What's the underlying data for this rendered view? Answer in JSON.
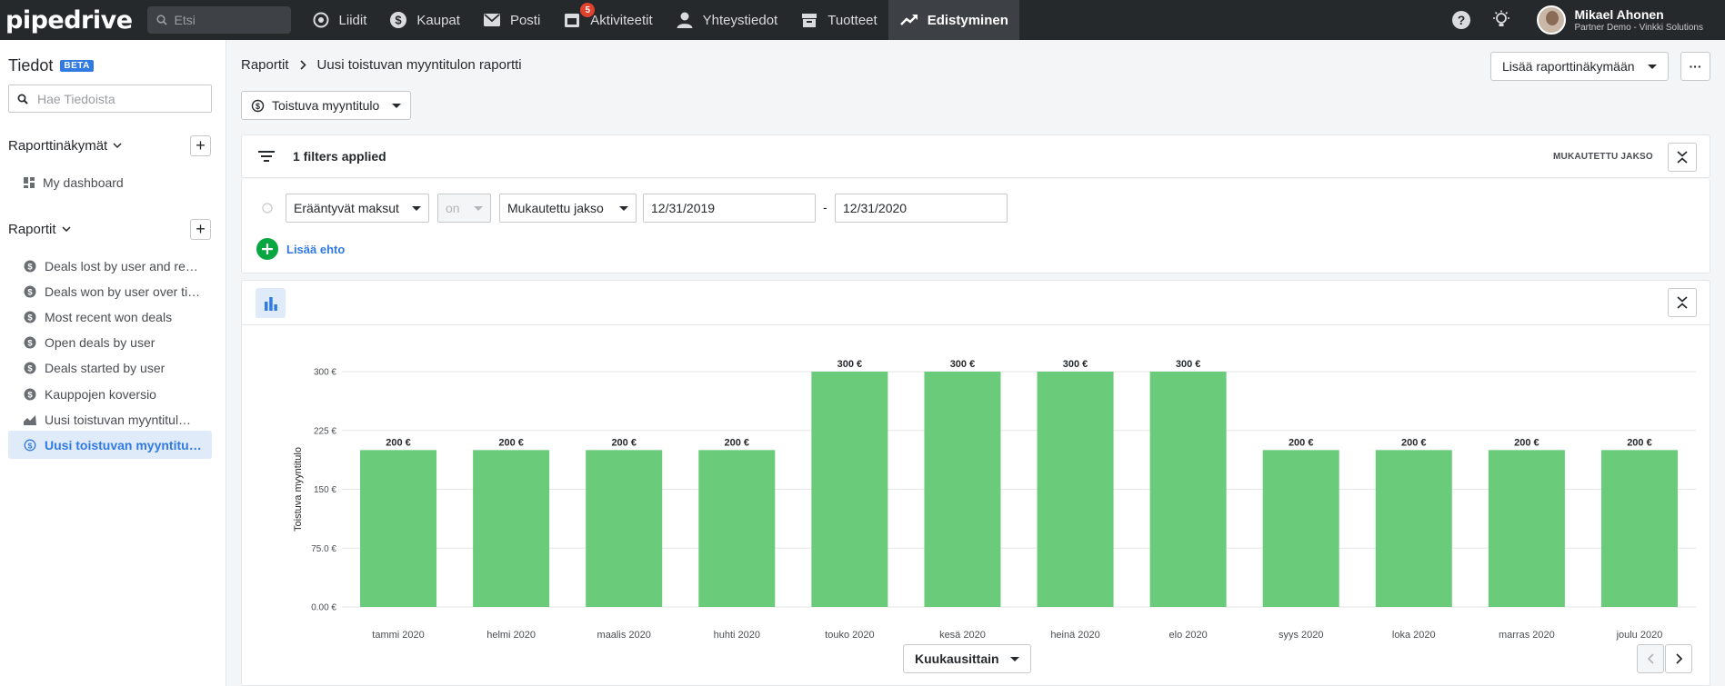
{
  "topbar": {
    "logo": "pipedrive",
    "search_placeholder": "Etsi",
    "nav": [
      {
        "label": "Liidit",
        "icon": "target-icon"
      },
      {
        "label": "Kaupat",
        "icon": "dollar-icon"
      },
      {
        "label": "Posti",
        "icon": "mail-icon"
      },
      {
        "label": "Aktiviteetit",
        "icon": "calendar-icon",
        "badge": "5"
      },
      {
        "label": "Yhteystiedot",
        "icon": "person-icon"
      },
      {
        "label": "Tuotteet",
        "icon": "box-icon"
      },
      {
        "label": "Edistyminen",
        "icon": "trend-icon",
        "active": true
      }
    ],
    "user": {
      "name": "Mikael Ahonen",
      "company": "Partner Demo - Vinkki Solutions"
    }
  },
  "sidebar": {
    "title": "Tiedot",
    "beta": "BETA",
    "search_placeholder": "Hae Tiedoista",
    "views_section": "Raporttinäkymät",
    "views": [
      {
        "label": "My dashboard",
        "icon": "dashboard-icon"
      }
    ],
    "reports_section": "Raportit",
    "reports": [
      {
        "label": "Deals lost by user and rea…",
        "icon": "dollar-icon"
      },
      {
        "label": "Deals won by user over ti…",
        "icon": "dollar-icon"
      },
      {
        "label": "Most recent won deals",
        "icon": "dollar-icon"
      },
      {
        "label": "Open deals by user",
        "icon": "dollar-icon"
      },
      {
        "label": "Deals started by user",
        "icon": "dollar-icon"
      },
      {
        "label": "Kauppojen koversio",
        "icon": "dollar-icon"
      },
      {
        "label": "Uusi toistuvan myyntitul…",
        "icon": "area-chart-icon"
      },
      {
        "label": "Uusi toistuvan myyntitul…",
        "icon": "recurring-icon",
        "active": true
      }
    ]
  },
  "main": {
    "breadcrumb_root": "Raportit",
    "breadcrumb_current": "Uusi toistuvan myyntitulon raportti",
    "add_to_view": "Lisää raporttinäkymään",
    "more": "···",
    "report_type": "Toistuva myyntitulo",
    "filters_applied": "1 filters applied",
    "period_label": "MUKAUTETTU JAKSO",
    "filter": {
      "field": "Erääntyvät maksut",
      "operator": "on",
      "period": "Mukautettu jakso",
      "from": "12/31/2019",
      "dash": "-",
      "to": "12/31/2020"
    },
    "add_condition": "Lisää ehto",
    "group_by": "Kuukausittain"
  },
  "chart_data": {
    "type": "bar",
    "ylabel": "Toistuva myyntitulo",
    "ylim": [
      0,
      300
    ],
    "yticks": [
      "0.00 €",
      "75.0 €",
      "150 €",
      "225 €",
      "300 €"
    ],
    "ytick_values": [
      0,
      75,
      150,
      225,
      300
    ],
    "categories": [
      "tammi 2020",
      "helmi 2020",
      "maalis 2020",
      "huhti 2020",
      "touko 2020",
      "kesä 2020",
      "heinä 2020",
      "elo 2020",
      "syys 2020",
      "loka 2020",
      "marras 2020",
      "joulu 2020"
    ],
    "values": [
      200,
      200,
      200,
      200,
      300,
      300,
      300,
      300,
      200,
      200,
      200,
      200
    ],
    "value_labels": [
      "200 €",
      "200 €",
      "200 €",
      "200 €",
      "300 €",
      "300 €",
      "300 €",
      "300 €",
      "200 €",
      "200 €",
      "200 €",
      "200 €"
    ],
    "bar_color": "#6acb7b",
    "grid": true
  }
}
